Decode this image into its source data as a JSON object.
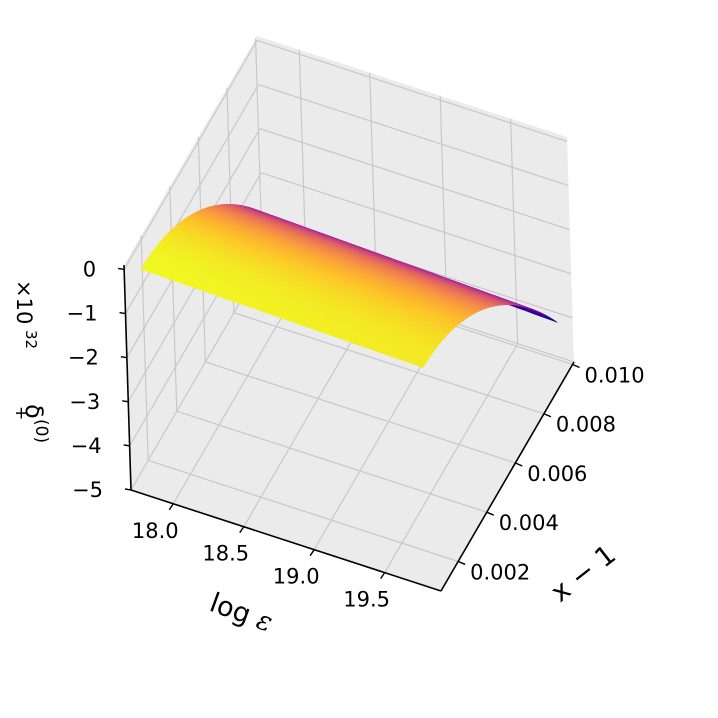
{
  "chart_data": {
    "type": "surface3d",
    "colormap": "plasma",
    "colormap_stops": [
      "#0d0887",
      "#5302a3",
      "#8b0aa5",
      "#b83289",
      "#db5c68",
      "#f48849",
      "#febd2a",
      "#f0f921"
    ],
    "pane_color": "#ebebeb",
    "grid_color": "#c8c8c8",
    "grid": true,
    "x_axis": {
      "label_text": "log ",
      "label_symbol": "ε",
      "ticks": [
        18.0,
        18.5,
        19.0,
        19.5
      ],
      "tick_labels": [
        "18.0",
        "18.5",
        "19.0",
        "19.5"
      ],
      "range": [
        17.7,
        19.9
      ]
    },
    "y_axis": {
      "label": "x − 1",
      "ticks": [
        0.002,
        0.004,
        0.006,
        0.008,
        0.01
      ],
      "tick_labels": [
        "0.002",
        "0.004",
        "0.006",
        "0.008",
        "0.010"
      ],
      "range": [
        0.0008,
        0.0101
      ]
    },
    "z_axis": {
      "label_main": "δ",
      "label_sub": "+",
      "label_sup": "(0)",
      "offset_text": "×10",
      "offset_exp": "32",
      "ticks": [
        0,
        -1,
        -2,
        -3,
        -4,
        -5
      ],
      "tick_labels": [
        "0",
        "−1",
        "−2",
        "−3",
        "−4",
        "−5"
      ],
      "range": [
        -5.0,
        0.1
      ]
    },
    "surface": {
      "description_formula_params": {
        "z_at_x_min_y_min": 0.0,
        "z_at_x_max_y_min": -0.15,
        "z_at_x_min_y_max": -3.9,
        "z_at_x_max_y_max": -4.15,
        "shape": "quadratic in y, slight linear decrease in log eps"
      }
    }
  }
}
